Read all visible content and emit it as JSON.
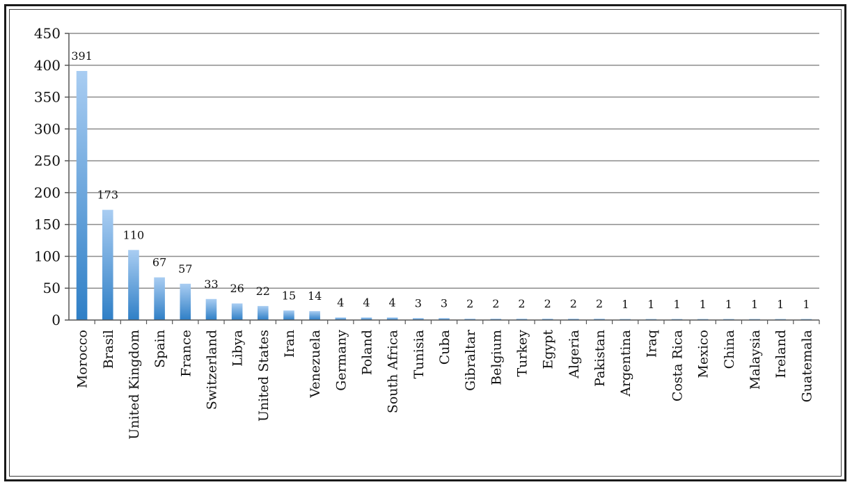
{
  "chart_data": {
    "type": "bar",
    "categories": [
      "Morocco",
      "Brasil",
      "United Kingdom",
      "Spain",
      "France",
      "Switzerland",
      "Libya",
      "United States",
      "Iran",
      "Venezuela",
      "Germany",
      "Poland",
      "South Africa",
      "Tunisia",
      "Cuba",
      "Gibraltar",
      "Belgium",
      "Turkey",
      "Egypt",
      "Algeria",
      "Pakistan",
      "Argentina",
      "Iraq",
      "Costa Rica",
      "Mexico",
      "China",
      "Malaysia",
      "Ireland",
      "Guatemala"
    ],
    "values": [
      391,
      173,
      110,
      67,
      57,
      33,
      26,
      22,
      15,
      14,
      4,
      4,
      4,
      3,
      3,
      2,
      2,
      2,
      2,
      2,
      2,
      1,
      1,
      1,
      1,
      1,
      1,
      1,
      1
    ],
    "ylim": [
      0,
      450
    ],
    "yticks": [
      0,
      50,
      100,
      150,
      200,
      250,
      300,
      350,
      400,
      450
    ],
    "grid": true,
    "legend": "none",
    "data_labels": true,
    "colors": {
      "bar_top": "#a9cdf2",
      "bar_bottom": "#2f7fc6",
      "grid": "#8c8c8c"
    }
  }
}
